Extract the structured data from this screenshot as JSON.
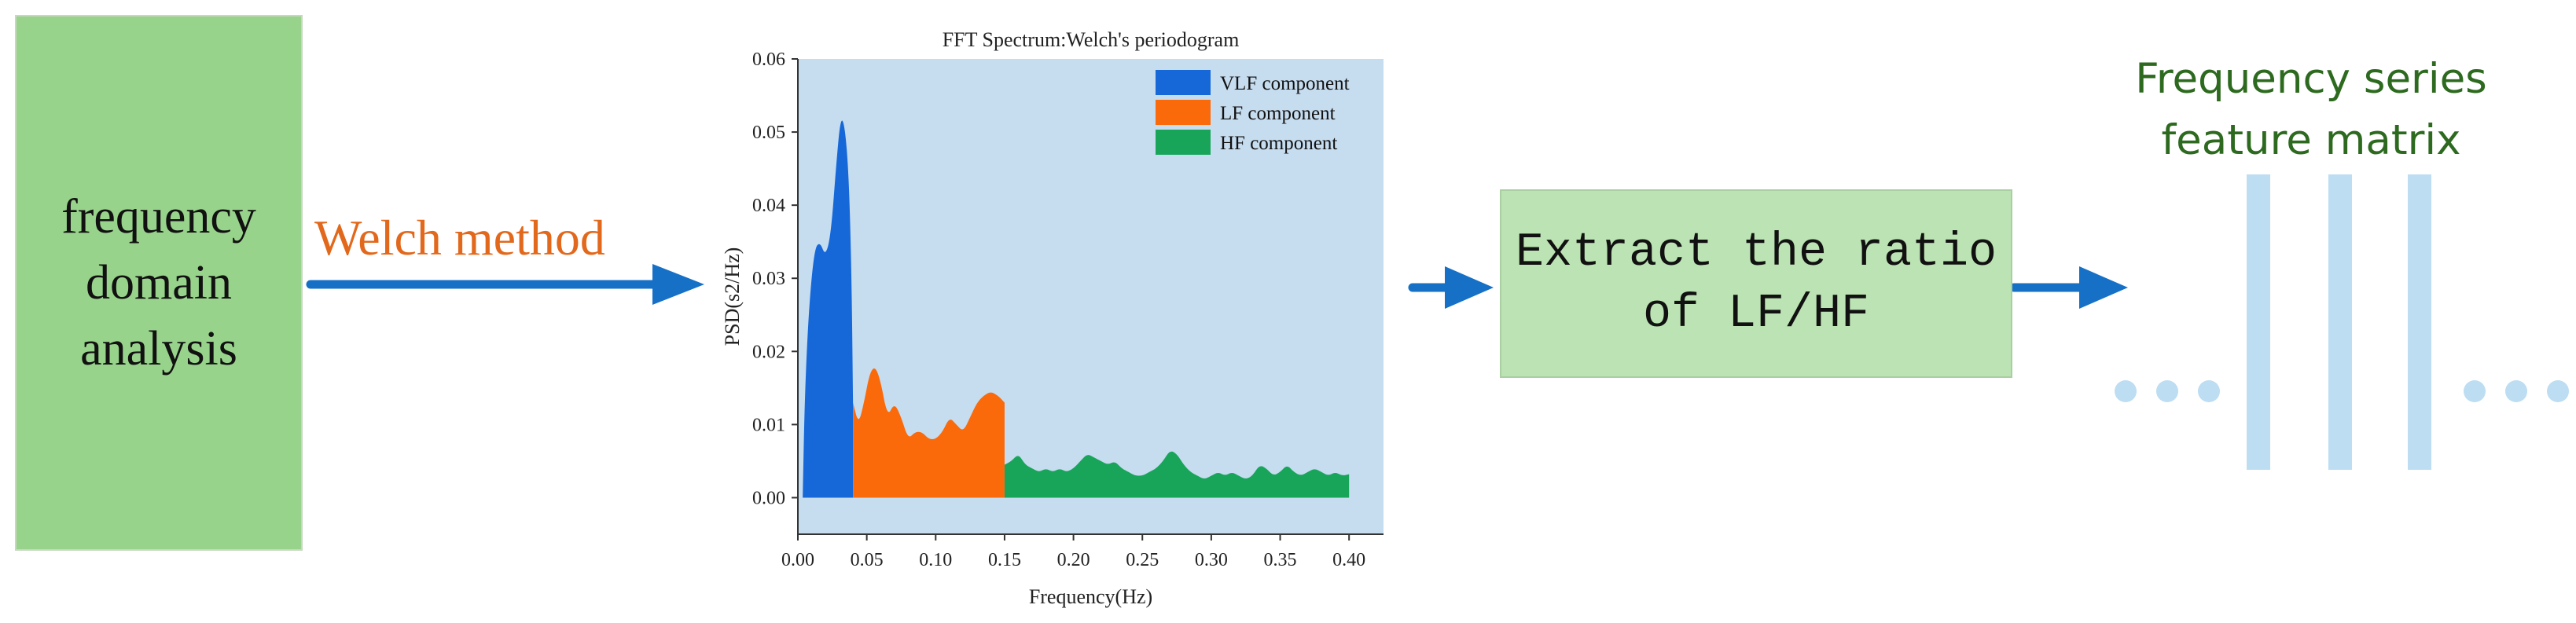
{
  "left_box": {
    "label": "frequency\ndomain\nanalysis"
  },
  "arrow1": {
    "label": "Welch method"
  },
  "middle_box": {
    "label": "Extract the ratio\nof LF/HF"
  },
  "feature": {
    "title": "Frequency series\nfeature matrix"
  },
  "colors": {
    "vlf": "#1668d8",
    "lf": "#fa6a0a",
    "hf": "#18a55a",
    "arrow": "#1670c6",
    "plot_bg": "#c6dcef"
  },
  "chart_data": {
    "type": "area",
    "title": "FFT Spectrum:Welch's periodogram",
    "xlabel": "Frequency(Hz)",
    "ylabel": "PSD(s2/Hz)",
    "xlim": [
      0,
      0.425
    ],
    "ylim": [
      -0.005,
      0.06
    ],
    "xticks": [
      "0.00",
      "0.05",
      "0.10",
      "0.15",
      "0.20",
      "0.25",
      "0.30",
      "0.35",
      "0.40"
    ],
    "yticks": [
      "0.00",
      "0.01",
      "0.02",
      "0.03",
      "0.04",
      "0.05",
      "0.06"
    ],
    "legend_position": "top-right",
    "series": [
      {
        "name": "VLF component",
        "x": [
          0.0035,
          0.005,
          0.008,
          0.012,
          0.016,
          0.02,
          0.024,
          0.028,
          0.031,
          0.034,
          0.037,
          0.039,
          0.04
        ],
        "values": [
          0,
          0.014,
          0.026,
          0.034,
          0.035,
          0.033,
          0.036,
          0.046,
          0.052,
          0.051,
          0.044,
          0.03,
          0.013
        ]
      },
      {
        "name": "LF component",
        "x": [
          0.04,
          0.044,
          0.048,
          0.052,
          0.056,
          0.06,
          0.065,
          0.07,
          0.075,
          0.08,
          0.085,
          0.09,
          0.095,
          0.1,
          0.105,
          0.11,
          0.115,
          0.12,
          0.125,
          0.13,
          0.135,
          0.14,
          0.145,
          0.15
        ],
        "values": [
          0.013,
          0.01,
          0.013,
          0.017,
          0.018,
          0.016,
          0.011,
          0.013,
          0.011,
          0.008,
          0.009,
          0.009,
          0.008,
          0.008,
          0.009,
          0.011,
          0.01,
          0.009,
          0.011,
          0.013,
          0.014,
          0.0145,
          0.014,
          0.013
        ]
      },
      {
        "name": "HF component",
        "x": [
          0.15,
          0.155,
          0.16,
          0.165,
          0.17,
          0.175,
          0.18,
          0.185,
          0.19,
          0.195,
          0.2,
          0.205,
          0.21,
          0.215,
          0.22,
          0.225,
          0.23,
          0.235,
          0.24,
          0.245,
          0.25,
          0.255,
          0.26,
          0.265,
          0.27,
          0.275,
          0.28,
          0.285,
          0.29,
          0.295,
          0.3,
          0.305,
          0.31,
          0.315,
          0.32,
          0.325,
          0.33,
          0.335,
          0.34,
          0.345,
          0.35,
          0.355,
          0.36,
          0.365,
          0.37,
          0.375,
          0.38,
          0.385,
          0.39,
          0.395,
          0.4
        ],
        "values": [
          0.0045,
          0.005,
          0.006,
          0.0045,
          0.004,
          0.0035,
          0.004,
          0.0035,
          0.004,
          0.0035,
          0.004,
          0.005,
          0.006,
          0.0055,
          0.005,
          0.0045,
          0.005,
          0.004,
          0.0035,
          0.003,
          0.003,
          0.0035,
          0.004,
          0.005,
          0.0065,
          0.006,
          0.0045,
          0.0035,
          0.003,
          0.0025,
          0.003,
          0.0035,
          0.003,
          0.0035,
          0.003,
          0.0025,
          0.003,
          0.0045,
          0.004,
          0.003,
          0.0035,
          0.0045,
          0.0035,
          0.003,
          0.0035,
          0.004,
          0.0035,
          0.003,
          0.0035,
          0.003,
          0.0032
        ]
      }
    ]
  }
}
